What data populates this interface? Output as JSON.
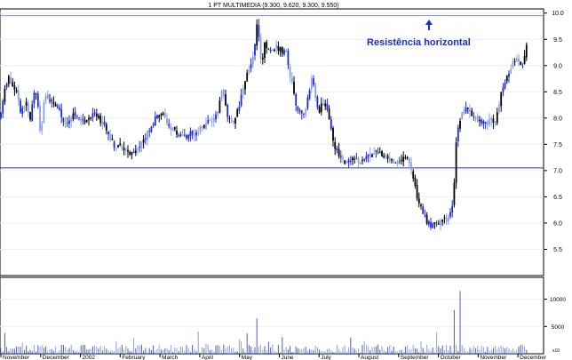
{
  "chart_data": {
    "type": "candlestick",
    "title": "1 PT MULTIMEDIA (9.300, 9.620, 9.300, 9.550)",
    "annotation": "Resistência horizontal",
    "price_axis": {
      "ylim": [
        5.0,
        10.08
      ],
      "ticks": [
        "10.0",
        "9.5",
        "9.0",
        "8.5",
        "8.0",
        "7.5",
        "7.0",
        "6.5",
        "6.0",
        "5.5"
      ]
    },
    "volume_axis": {
      "ylim": [
        0,
        14000
      ],
      "ticks": [
        "10000",
        "5000"
      ],
      "unit_label": "x10"
    },
    "x_labels": [
      "November",
      "December",
      "2002",
      "February",
      "March",
      "April",
      "May",
      "June",
      "July",
      "August",
      "September",
      "October",
      "November",
      "December"
    ],
    "horizontal_lines": [
      {
        "name": "resistance",
        "value": 9.95,
        "color": "#6f89ff"
      },
      {
        "name": "support",
        "value": 7.05,
        "color": "#2a3d9e"
      }
    ],
    "price_path": [
      [
        0,
        8.0
      ],
      [
        6,
        8.6
      ],
      [
        10,
        8.75
      ],
      [
        18,
        8.5
      ],
      [
        24,
        8.1
      ],
      [
        30,
        8.3
      ],
      [
        34,
        8.0
      ],
      [
        38,
        8.55
      ],
      [
        42,
        8.45
      ],
      [
        46,
        7.6
      ],
      [
        50,
        8.4
      ],
      [
        58,
        8.35
      ],
      [
        66,
        8.15
      ],
      [
        74,
        7.9
      ],
      [
        82,
        8.1
      ],
      [
        90,
        8.0
      ],
      [
        96,
        7.9
      ],
      [
        104,
        8.1
      ],
      [
        112,
        8.0
      ],
      [
        120,
        7.75
      ],
      [
        128,
        7.5
      ],
      [
        136,
        7.45
      ],
      [
        144,
        7.35
      ],
      [
        152,
        7.35
      ],
      [
        160,
        7.5
      ],
      [
        168,
        7.8
      ],
      [
        176,
        8.0
      ],
      [
        184,
        8.05
      ],
      [
        190,
        7.8
      ],
      [
        200,
        7.7
      ],
      [
        210,
        7.65
      ],
      [
        220,
        7.75
      ],
      [
        230,
        7.85
      ],
      [
        240,
        8.0
      ],
      [
        246,
        8.2
      ],
      [
        250,
        8.6
      ],
      [
        256,
        8.0
      ],
      [
        262,
        7.9
      ],
      [
        270,
        8.3
      ],
      [
        276,
        8.75
      ],
      [
        282,
        9.0
      ],
      [
        286,
        9.2
      ],
      [
        290,
        9.9
      ],
      [
        294,
        9.0
      ],
      [
        298,
        9.4
      ],
      [
        304,
        9.3
      ],
      [
        310,
        9.35
      ],
      [
        316,
        9.3
      ],
      [
        322,
        9.25
      ],
      [
        328,
        8.7
      ],
      [
        334,
        8.2
      ],
      [
        340,
        8.05
      ],
      [
        346,
        8.3
      ],
      [
        352,
        8.8
      ],
      [
        358,
        8.1
      ],
      [
        364,
        8.3
      ],
      [
        370,
        8.1
      ],
      [
        376,
        7.5
      ],
      [
        382,
        7.3
      ],
      [
        388,
        7.1
      ],
      [
        394,
        7.2
      ],
      [
        400,
        7.2
      ],
      [
        406,
        7.15
      ],
      [
        414,
        7.25
      ],
      [
        422,
        7.4
      ],
      [
        430,
        7.3
      ],
      [
        436,
        7.2
      ],
      [
        442,
        7.15
      ],
      [
        450,
        7.2
      ],
      [
        456,
        7.3
      ],
      [
        460,
        7.2
      ],
      [
        464,
        6.9
      ],
      [
        470,
        6.5
      ],
      [
        476,
        6.2
      ],
      [
        482,
        6.0
      ],
      [
        488,
        5.95
      ],
      [
        494,
        6.0
      ],
      [
        500,
        6.05
      ],
      [
        506,
        6.1
      ],
      [
        510,
        6.4
      ],
      [
        514,
        7.6
      ],
      [
        518,
        8.0
      ],
      [
        524,
        8.15
      ],
      [
        530,
        8.1
      ],
      [
        536,
        8.0
      ],
      [
        542,
        7.95
      ],
      [
        548,
        7.85
      ],
      [
        554,
        8.0
      ],
      [
        558,
        7.9
      ],
      [
        564,
        8.5
      ],
      [
        570,
        8.8
      ],
      [
        576,
        9.0
      ],
      [
        582,
        9.1
      ],
      [
        588,
        9.0
      ],
      [
        592,
        9.3
      ],
      [
        594,
        9.55
      ]
    ],
    "volume_spikes": [
      {
        "x": 290,
        "v": 6500
      },
      {
        "x": 512,
        "v": 8000
      },
      {
        "x": 518,
        "v": 11500
      },
      {
        "x": 594,
        "v": 4200
      }
    ]
  }
}
